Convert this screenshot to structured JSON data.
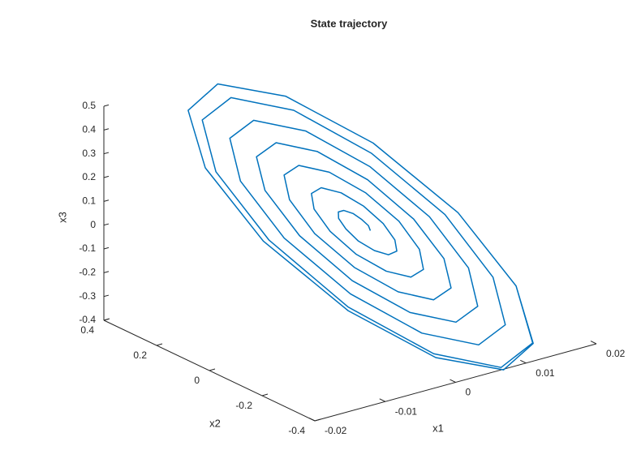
{
  "chart_data": {
    "type": "line3d",
    "title": "State trajectory",
    "xlabel": "x1",
    "ylabel": "x2",
    "zlabel": "x3",
    "color": "#0072BD",
    "xlim": [
      -0.02,
      0.02
    ],
    "xticks": [
      -0.02,
      -0.01,
      0,
      0.01,
      0.02
    ],
    "ylim": [
      -0.4,
      0.4
    ],
    "yticks": [
      -0.4,
      -0.2,
      0,
      0.2,
      0.4
    ],
    "zlim": [
      -0.4,
      0.5
    ],
    "zticks": [
      -0.4,
      -0.3,
      -0.2,
      -0.1,
      0,
      0.1,
      0.2,
      0.3,
      0.4,
      0.5
    ],
    "x": [
      0.0022,
      0.0023,
      0.002,
      0.0015,
      0.0008,
      0.0002,
      -0.0001,
      0.0,
      0.0005,
      0.0015,
      0.0026,
      0.0036,
      0.004,
      0.0038,
      0.0029,
      0.0015,
      -0.0001,
      -0.0013,
      -0.0019,
      -0.0016,
      -0.0004,
      0.0015,
      0.0035,
      0.0051,
      0.0058,
      0.0054,
      0.0038,
      0.0015,
      -0.001,
      -0.0029,
      -0.0037,
      -0.0032,
      -0.0013,
      0.0015,
      0.0044,
      0.0067,
      0.0076,
      0.0069,
      0.0047,
      0.0015,
      -0.0019,
      -0.0045,
      -0.0055,
      -0.0047,
      -0.0022,
      0.0015,
      0.0053,
      0.0082,
      0.0094,
      0.0085,
      0.0056,
      0.0015,
      -0.0028,
      -0.006,
      -0.0073,
      -0.0063,
      -0.0031,
      0.0015,
      0.0062,
      0.0098,
      0.0112,
      0.0101,
      0.0065,
      0.0015,
      -0.0037,
      -0.0076,
      -0.0091,
      -0.0078,
      -0.004,
      0.0015,
      0.0071,
      0.0114,
      0.0129,
      0.0114,
      0.0072,
      0.0015,
      -0.0042,
      -0.0084,
      -0.0099,
      -0.0084,
      -0.0042,
      0.0015,
      0.0072,
      0.0114,
      0.0129,
      0.0114,
      0.0072,
      0.0015,
      -0.0042,
      -0.0084,
      -0.0099,
      -0.0084,
      -0.0042,
      0.0015,
      0.0072,
      0.0114,
      0.0129
    ],
    "y": [
      -0.018,
      -0.008,
      0.009,
      0.029,
      0.045,
      0.05,
      0.041,
      0.016,
      -0.018,
      -0.052,
      -0.076,
      -0.081,
      -0.063,
      -0.024,
      0.026,
      0.074,
      0.107,
      0.112,
      0.086,
      0.033,
      -0.034,
      -0.097,
      -0.137,
      -0.142,
      -0.108,
      -0.041,
      0.042,
      0.119,
      0.168,
      0.173,
      0.131,
      0.049,
      -0.051,
      -0.142,
      -0.199,
      -0.204,
      -0.153,
      -0.057,
      0.059,
      0.164,
      0.23,
      0.235,
      0.176,
      0.066,
      -0.067,
      -0.187,
      -0.26,
      -0.265,
      -0.198,
      -0.074,
      0.075,
      0.209,
      0.291,
      0.296,
      0.221,
      0.082,
      -0.084,
      -0.232,
      -0.322,
      -0.327,
      -0.243,
      -0.09,
      0.092,
      0.254,
      0.353,
      0.358,
      0.266,
      0.099,
      -0.1,
      -0.277,
      -0.383,
      -0.388,
      -0.285,
      -0.105,
      0.105,
      0.285,
      0.39,
      0.39,
      0.285,
      0.105,
      -0.105,
      -0.285,
      -0.39,
      -0.39,
      -0.285,
      -0.105,
      0.105,
      0.285,
      0.39,
      0.39,
      0.285,
      0.105,
      -0.105,
      -0.285,
      -0.39,
      -0.39,
      -0.285
    ],
    "z": [
      0.018,
      0.033,
      0.052,
      0.071,
      0.081,
      0.077,
      0.057,
      0.025,
      -0.012,
      -0.042,
      -0.056,
      -0.046,
      -0.012,
      0.038,
      0.092,
      0.134,
      0.151,
      0.134,
      0.087,
      0.019,
      -0.052,
      -0.105,
      -0.125,
      -0.103,
      -0.042,
      0.044,
      0.132,
      0.197,
      0.22,
      0.192,
      0.117,
      0.014,
      -0.091,
      -0.168,
      -0.195,
      -0.161,
      -0.072,
      0.049,
      0.171,
      0.26,
      0.29,
      0.249,
      0.147,
      0.008,
      -0.131,
      -0.231,
      -0.264,
      -0.218,
      -0.102,
      0.055,
      0.211,
      0.323,
      0.359,
      0.307,
      0.177,
      0.003,
      -0.17,
      -0.294,
      -0.334,
      -0.276,
      -0.132,
      0.06,
      0.25,
      0.386,
      0.429,
      0.364,
      0.207,
      -0.003,
      -0.21,
      -0.357,
      -0.404,
      -0.333,
      -0.16,
      0.065,
      0.281,
      0.429,
      0.471,
      0.394,
      0.22,
      -0.005,
      -0.221,
      -0.369,
      -0.411,
      -0.334,
      -0.16,
      0.065,
      0.281,
      0.429,
      0.471,
      0.394,
      0.22,
      -0.005,
      -0.221,
      -0.369,
      -0.411,
      -0.334,
      -0.16
    ]
  }
}
